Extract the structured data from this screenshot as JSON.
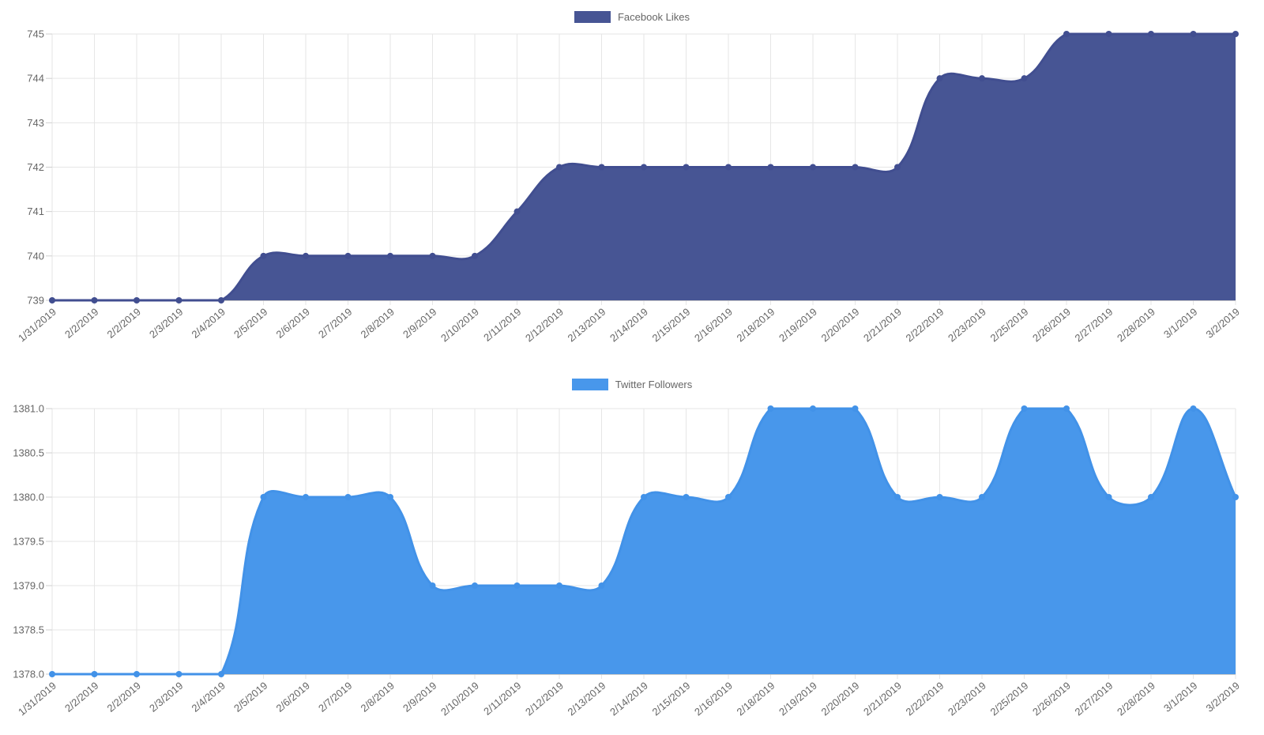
{
  "chart_data": [
    {
      "type": "area",
      "title": "",
      "legend_position": "top",
      "grid": true,
      "x": [
        "1/31/2019",
        "2/2/2019",
        "2/2/2019",
        "2/3/2019",
        "2/4/2019",
        "2/5/2019",
        "2/6/2019",
        "2/7/2019",
        "2/8/2019",
        "2/9/2019",
        "2/10/2019",
        "2/11/2019",
        "2/12/2019",
        "2/13/2019",
        "2/14/2019",
        "2/15/2019",
        "2/16/2019",
        "2/18/2019",
        "2/19/2019",
        "2/20/2019",
        "2/21/2019",
        "2/22/2019",
        "2/23/2019",
        "2/25/2019",
        "2/26/2019",
        "2/27/2019",
        "2/28/2019",
        "3/1/2019",
        "3/2/2019"
      ],
      "series": [
        {
          "name": "Facebook Likes",
          "values": [
            739,
            739,
            739,
            739,
            739,
            740,
            740,
            740,
            740,
            740,
            740,
            741,
            742,
            742,
            742,
            742,
            742,
            742,
            742,
            742,
            742,
            744,
            744,
            744,
            745,
            745,
            745,
            745,
            745
          ]
        }
      ],
      "ylim": [
        739,
        745
      ],
      "ytick_labels": [
        "745",
        "744",
        "743",
        "742",
        "741",
        "740",
        "739"
      ],
      "xlabel": "",
      "ylabel": "",
      "fill_color": "#475594",
      "line_color": "#414E90",
      "point_color": "#414E90"
    },
    {
      "type": "area",
      "title": "",
      "legend_position": "top",
      "grid": true,
      "x": [
        "1/31/2019",
        "2/2/2019",
        "2/2/2019",
        "2/3/2019",
        "2/4/2019",
        "2/5/2019",
        "2/6/2019",
        "2/7/2019",
        "2/8/2019",
        "2/9/2019",
        "2/10/2019",
        "2/11/2019",
        "2/12/2019",
        "2/13/2019",
        "2/14/2019",
        "2/15/2019",
        "2/16/2019",
        "2/18/2019",
        "2/19/2019",
        "2/20/2019",
        "2/21/2019",
        "2/22/2019",
        "2/23/2019",
        "2/25/2019",
        "2/26/2019",
        "2/27/2019",
        "2/28/2019",
        "3/1/2019",
        "3/2/2019"
      ],
      "series": [
        {
          "name": "Twitter Followers",
          "values": [
            1378,
            1378,
            1378,
            1378,
            1378,
            1380,
            1380,
            1380,
            1380,
            1379,
            1379,
            1379,
            1379,
            1379,
            1380,
            1380,
            1380,
            1381,
            1381,
            1381,
            1380,
            1380,
            1380,
            1381,
            1381,
            1380,
            1380,
            1381,
            1380
          ]
        }
      ],
      "ylim": [
        1378.0,
        1381.0
      ],
      "ytick_labels": [
        "1381.0",
        "1380.5",
        "1380.0",
        "1379.5",
        "1379.0",
        "1378.5",
        "1378.0"
      ],
      "xlabel": "",
      "ylabel": "",
      "fill_color": "#4897EB",
      "line_color": "#4292E8",
      "point_color": "#4292E8"
    }
  ],
  "style_colors": {
    "grid": "#e6e6e6",
    "axis_line": "#b9b9b9",
    "tick_stub": "#cfcfcf",
    "tick_text": "#666666",
    "background": "#ffffff"
  }
}
